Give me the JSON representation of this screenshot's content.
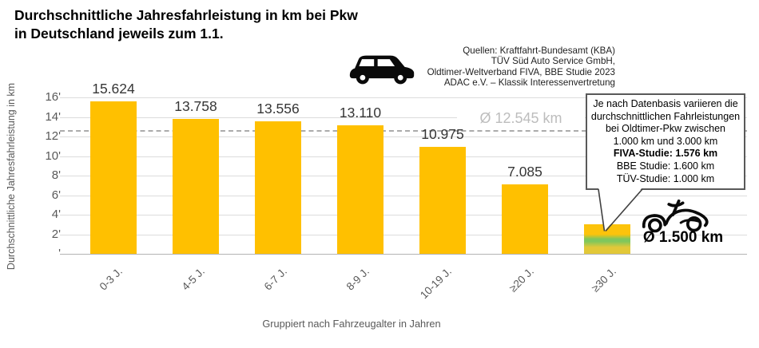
{
  "title": {
    "line1": "Durchschnittliche Jahresfahrleistung in km bei Pkw",
    "line2": "in Deutschland jeweils zum 1.1."
  },
  "sources": {
    "lines": [
      "Quellen: Kraftfahrt-Bundesamt (KBA)",
      "TÜV Süd Auto Service GmbH,",
      "Oldtimer-Weltverband FIVA, BBE Studie 2023",
      "ADAC e.V. – Klassik Interessenvertretung"
    ]
  },
  "icons": {
    "top_car": "car-icon",
    "oldtimer_car": "classic-car-icon"
  },
  "chart_data": {
    "type": "bar",
    "title": "Durchschnittliche Jahresfahrleistung in km bei Pkw in Deutschland jeweils zum 1.1.",
    "categories": [
      "0-3 J.",
      "4-5 J.",
      "6-7 J.",
      "8-9 J.",
      "10-19 J.",
      "≥20 J.",
      "≥30 J."
    ],
    "values": [
      15624,
      13758,
      13556,
      13110,
      10975,
      7085,
      3000
    ],
    "value_labels": [
      "15.624",
      "13.758",
      "13.556",
      "13.110",
      "10.975",
      "7.085",
      ""
    ],
    "xlabel": "Gruppiert nach Fahrzeugalter in Jahren",
    "ylabel": "Durchschnittliche Jahresfahrleistung in km",
    "ylim": [
      0,
      16000
    ],
    "ytick_step": 2000,
    "ytick_labels": [
      "'",
      "2'",
      "4'",
      "6'",
      "8'",
      "10'",
      "12'",
      "14'",
      "16'"
    ],
    "grid": true,
    "legend": false,
    "bar_color": "#FFC000",
    "last_bar_gradient": [
      "#FCC30B",
      "#7FC75C",
      "#E2C838"
    ],
    "average_line": {
      "value": 12545,
      "label": "Ø 12.545 km",
      "style": "dashed"
    },
    "oldtimer_bar": {
      "category": "≥30 J.",
      "range_km": [
        1000,
        3000
      ],
      "average_label": "Ø 1.500 km"
    }
  },
  "callout": {
    "lines": [
      "Je nach Datenbasis variieren die",
      "durchschnittlichen Fahrleistungen",
      "bei Oldtimer-Pkw zwischen",
      "1.000 km und 3.000 km",
      "FIVA-Studie: 1.576 km",
      "BBE Studie: 1.600 km",
      "TÜV-Studie: 1.000 km"
    ],
    "bold_line_index": 4
  },
  "oldtimer_avg_label": "Ø 1.500 km"
}
